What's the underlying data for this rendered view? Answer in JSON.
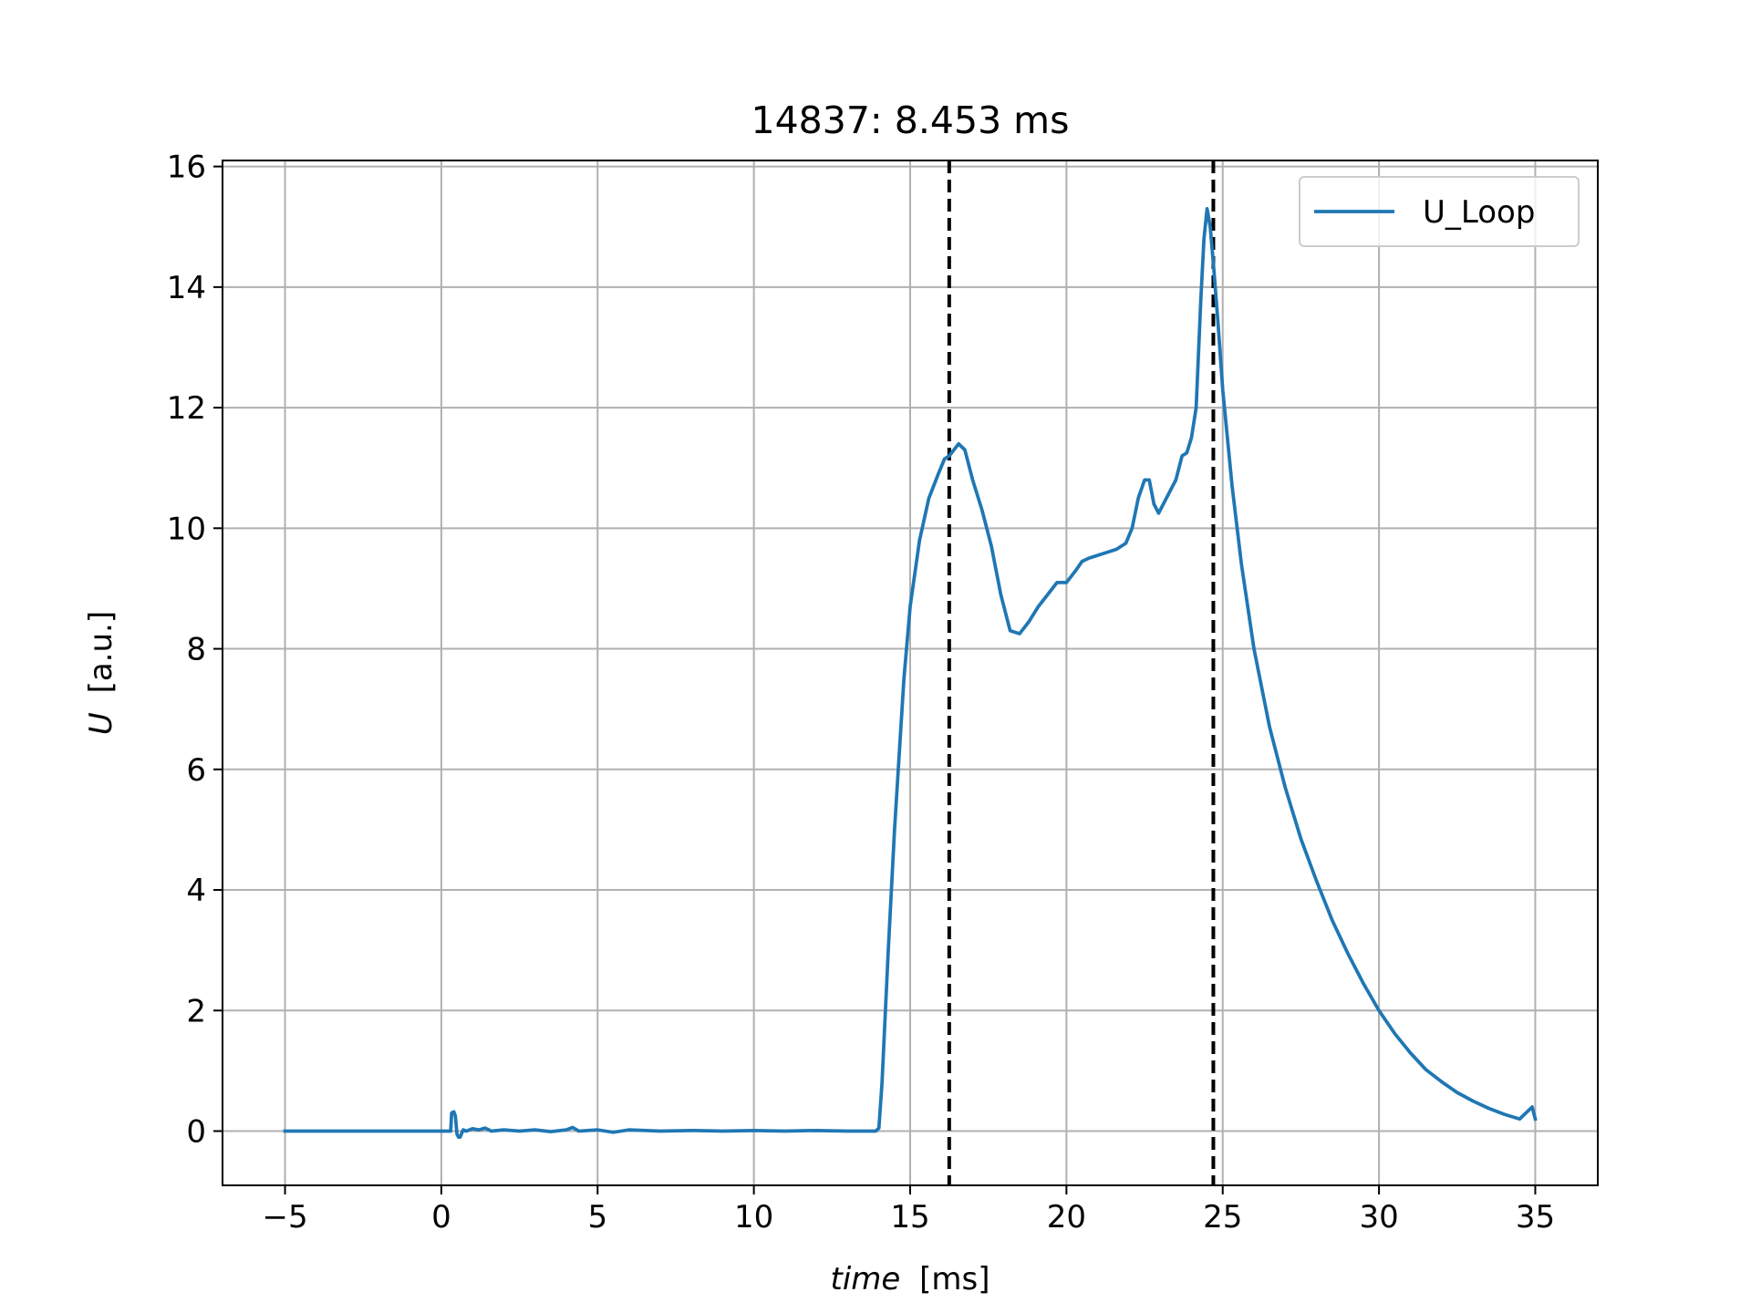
{
  "chart_data": {
    "type": "line",
    "title": "14837: 8.453 ms",
    "xlabel_italic": "time",
    "xlabel_unit": "[ms]",
    "ylabel_italic": "U",
    "ylabel_unit": "[a.u.]",
    "xlim": [
      -7,
      37
    ],
    "ylim": [
      -0.9,
      16.1
    ],
    "xticks": [
      -5,
      0,
      5,
      10,
      15,
      20,
      25,
      30,
      35
    ],
    "xtick_labels": [
      "−5",
      "0",
      "5",
      "10",
      "15",
      "20",
      "25",
      "30",
      "35"
    ],
    "yticks": [
      0,
      2,
      4,
      6,
      8,
      10,
      12,
      14,
      16
    ],
    "ytick_labels": [
      "0",
      "2",
      "4",
      "6",
      "8",
      "10",
      "12",
      "14",
      "16"
    ],
    "grid": true,
    "legend_position": "top-right",
    "vlines": [
      16.25,
      24.7
    ],
    "vline_style": "dashed",
    "series": [
      {
        "name": "U_Loop",
        "color": "#1f77b4",
        "x": [
          -5,
          0,
          0.3,
          0.33,
          0.4,
          0.45,
          0.5,
          0.55,
          0.6,
          0.7,
          0.8,
          1.0,
          1.2,
          1.4,
          1.6,
          2,
          2.5,
          3,
          3.5,
          4,
          4.2,
          4.4,
          5,
          5.5,
          6,
          7,
          8,
          9,
          10,
          11,
          12,
          13,
          13.9,
          14.0,
          14.1,
          14.3,
          14.5,
          14.8,
          15.0,
          15.3,
          15.6,
          15.9,
          16.1,
          16.25,
          16.4,
          16.55,
          16.75,
          17.0,
          17.3,
          17.6,
          17.9,
          18.2,
          18.5,
          18.8,
          19.1,
          19.4,
          19.7,
          20.0,
          20.3,
          20.5,
          20.7,
          21.0,
          21.3,
          21.6,
          21.9,
          22.1,
          22.3,
          22.5,
          22.65,
          22.8,
          22.95,
          23.1,
          23.3,
          23.5,
          23.7,
          23.85,
          24.0,
          24.15,
          24.3,
          24.4,
          24.5,
          24.6,
          24.7,
          24.85,
          25.0,
          25.3,
          25.6,
          26.0,
          26.5,
          27.0,
          27.5,
          28.0,
          28.5,
          29.0,
          29.5,
          30.0,
          30.5,
          31.0,
          31.5,
          32.0,
          32.5,
          33.0,
          33.5,
          34.0,
          34.5,
          34.9,
          35.0
        ],
        "y": [
          0,
          0,
          0.0,
          0.3,
          0.32,
          0.25,
          -0.05,
          -0.1,
          -0.1,
          0.02,
          0.0,
          0.04,
          0.02,
          0.05,
          0.0,
          0.02,
          0.0,
          0.02,
          -0.01,
          0.02,
          0.06,
          0.0,
          0.02,
          -0.02,
          0.02,
          0.0,
          0.01,
          0.0,
          0.01,
          0.0,
          0.01,
          0.0,
          0.0,
          0.05,
          0.8,
          3.0,
          5.0,
          7.5,
          8.7,
          9.8,
          10.5,
          10.9,
          11.15,
          11.2,
          11.3,
          11.4,
          11.3,
          10.8,
          10.3,
          9.7,
          8.9,
          8.3,
          8.25,
          8.45,
          8.7,
          8.9,
          9.1,
          9.1,
          9.3,
          9.45,
          9.5,
          9.55,
          9.6,
          9.65,
          9.75,
          10.0,
          10.5,
          10.8,
          10.8,
          10.4,
          10.25,
          10.4,
          10.6,
          10.8,
          11.2,
          11.25,
          11.5,
          12.0,
          13.8,
          14.8,
          15.3,
          15.0,
          14.4,
          13.4,
          12.3,
          10.7,
          9.4,
          8.0,
          6.7,
          5.7,
          4.85,
          4.15,
          3.5,
          2.95,
          2.45,
          2.0,
          1.62,
          1.3,
          1.02,
          0.82,
          0.64,
          0.5,
          0.38,
          0.28,
          0.2,
          0.4,
          0.2
        ]
      }
    ]
  }
}
